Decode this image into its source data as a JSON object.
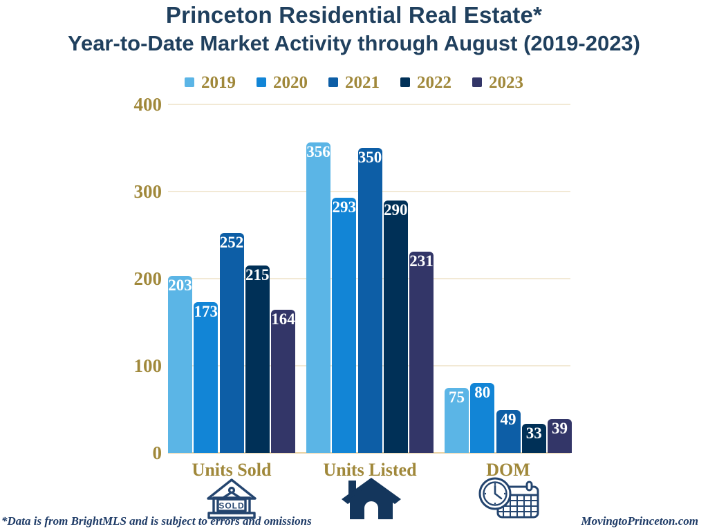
{
  "title": {
    "line1": "Princeton Residential Real Estate*",
    "line2": "Year-to-Date Market Activity through August (2019-2023)"
  },
  "chart_data": {
    "type": "bar",
    "categories": [
      "Units Sold",
      "Units Listed",
      "DOM"
    ],
    "series": [
      {
        "name": "2019",
        "color": "#5bb5e6",
        "values": [
          203,
          356,
          75
        ]
      },
      {
        "name": "2020",
        "color": "#1285d6",
        "values": [
          173,
          293,
          80
        ]
      },
      {
        "name": "2021",
        "color": "#0d5ea6",
        "values": [
          252,
          350,
          49
        ]
      },
      {
        "name": "2022",
        "color": "#003057",
        "values": [
          215,
          290,
          33
        ]
      },
      {
        "name": "2023",
        "color": "#333668",
        "values": [
          164,
          231,
          39
        ]
      }
    ],
    "ylim": [
      0,
      400
    ],
    "yticks": [
      0,
      100,
      200,
      300,
      400
    ],
    "grid": true,
    "legend_position": "top",
    "value_labels": true,
    "xlabel": "",
    "ylabel": ""
  },
  "category_icons": [
    "sold-house-icon",
    "house-icon",
    "clock-calendar-icon"
  ],
  "sold_sign_text": "SOLD",
  "footer": {
    "left": "*Data is from BrightMLS and is subject to errors and omissions",
    "right": "MovingtoPrinceton.com"
  },
  "colors": {
    "title": "#20405e",
    "gold": "#a0883a",
    "grid": "#f2e9d5",
    "axis": "#e9d2a3",
    "bar_label": "#ffffff",
    "footer": "#1d3a66",
    "icon_outline": "#24456f",
    "icon_solid": "#14365c"
  }
}
